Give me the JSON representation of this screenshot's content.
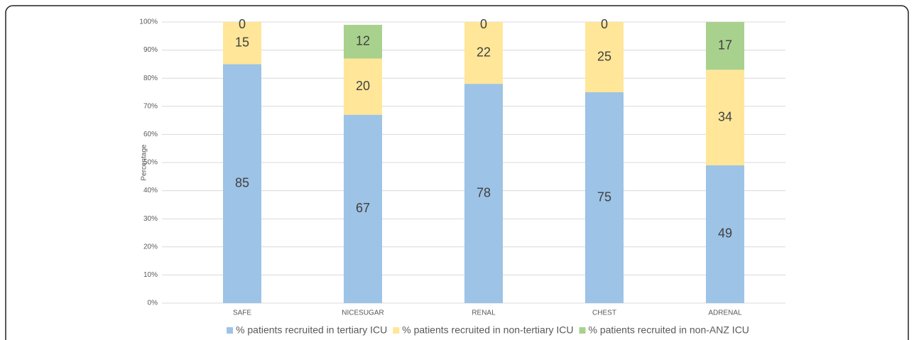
{
  "chart_data": {
    "type": "stacked-bar",
    "y_label": "Percentage",
    "categories": [
      "SAFE",
      "NICESUGAR",
      "RENAL",
      "CHEST",
      "ADRENAL"
    ],
    "series": [
      {
        "name": "% patients recruited in tertiary ICU",
        "color": "#9dc3e6",
        "values": [
          85,
          67,
          78,
          75,
          49
        ]
      },
      {
        "name": "% patients recruited in non-tertiary ICU",
        "color": "#ffe699",
        "values": [
          15,
          20,
          22,
          25,
          34
        ]
      },
      {
        "name": "% patients recruited in non-ANZ ICU",
        "color": "#a9d18e",
        "values": [
          0,
          12,
          0,
          0,
          17
        ]
      }
    ],
    "ylim": [
      0,
      100
    ],
    "yticks": [
      {
        "value": 0,
        "label": "0%"
      },
      {
        "value": 10,
        "label": "10%"
      },
      {
        "value": 20,
        "label": "20%"
      },
      {
        "value": 30,
        "label": "30%"
      },
      {
        "value": 40,
        "label": "40%"
      },
      {
        "value": 50,
        "label": "50%"
      },
      {
        "value": 60,
        "label": "60%"
      },
      {
        "value": 70,
        "label": "70%"
      },
      {
        "value": 80,
        "label": "80%"
      },
      {
        "value": 90,
        "label": "90%"
      },
      {
        "value": 100,
        "label": "100%"
      }
    ],
    "grid": true,
    "legend": "bottom"
  }
}
